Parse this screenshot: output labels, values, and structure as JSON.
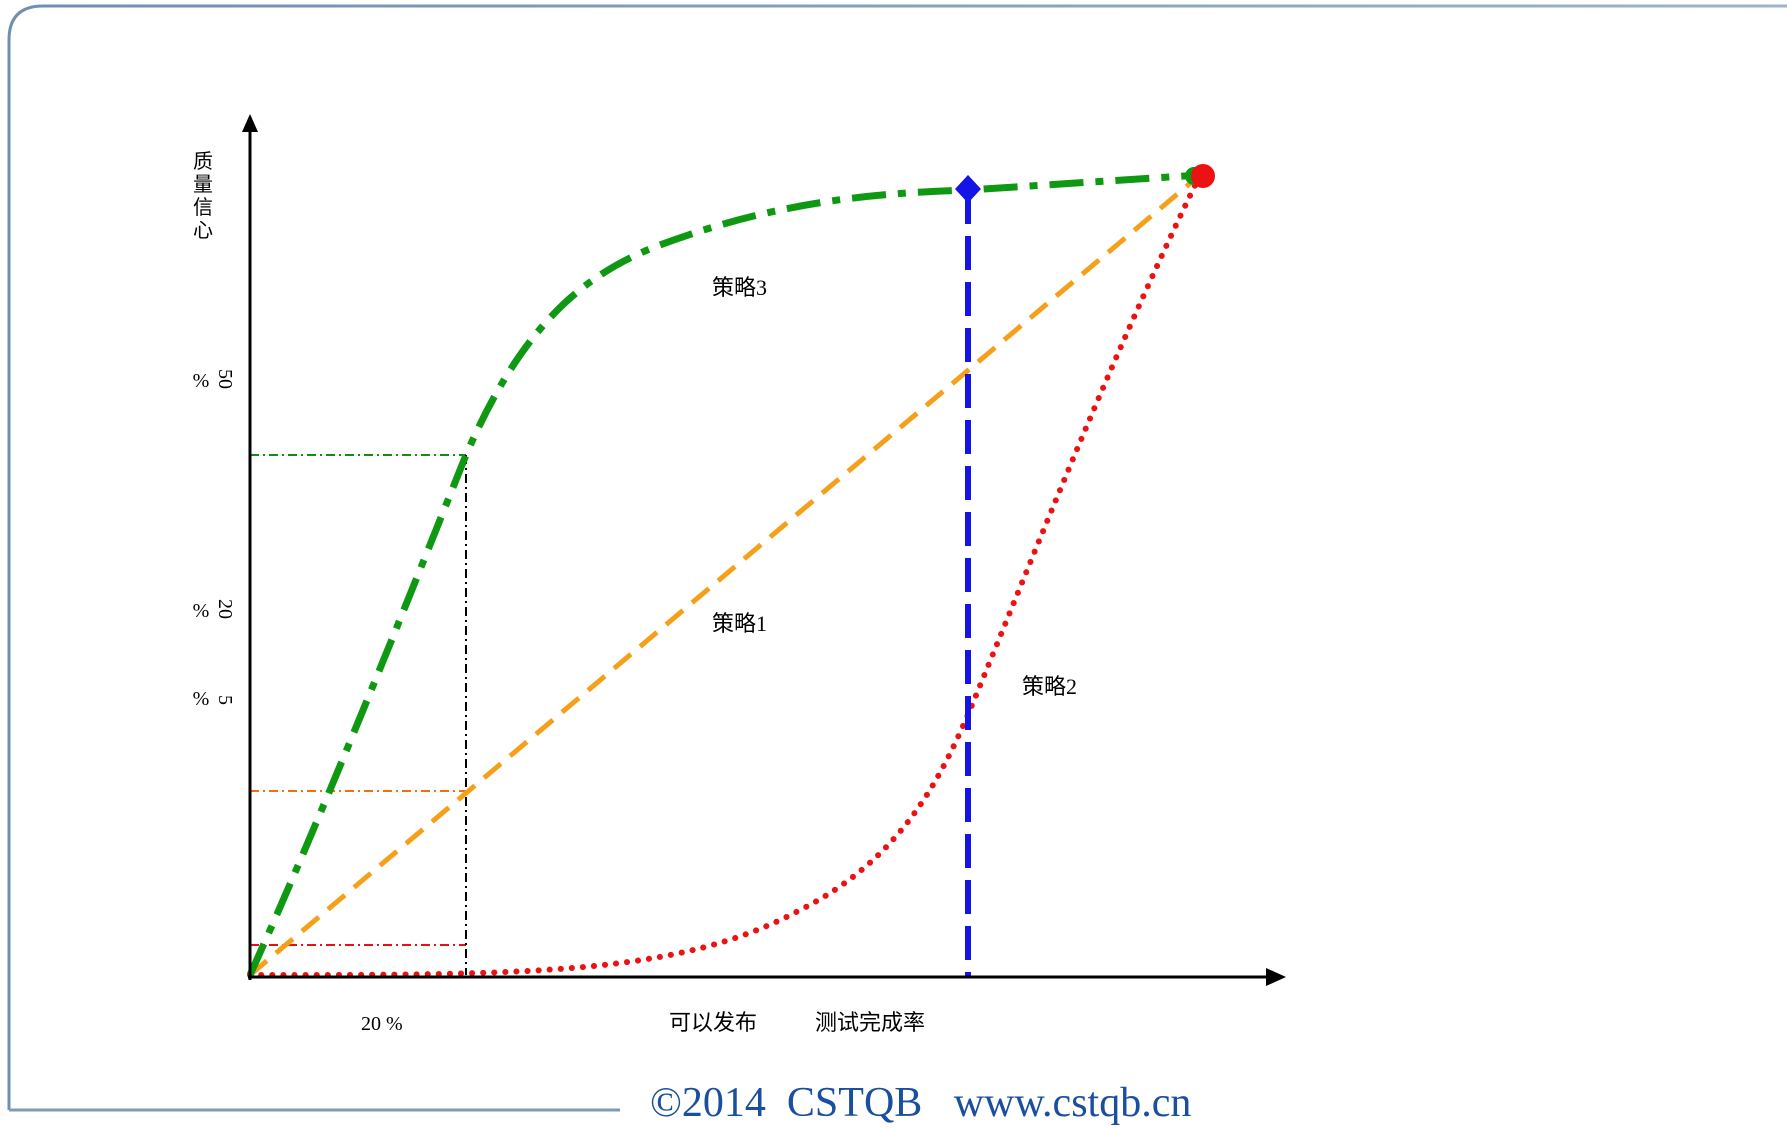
{
  "diagram": {
    "y_axis_label": "质量信心",
    "y_ticks": [
      {
        "value": "50",
        "unit": "%"
      },
      {
        "value": "20",
        "unit": "%"
      },
      {
        "value": "5",
        "unit": "%"
      }
    ],
    "x_tick": "20 %",
    "x_label_1": "可以发布",
    "x_label_2": "测试完成率",
    "strategies": [
      {
        "label": "策略1",
        "color": "#f5a01a",
        "style": "dashed"
      },
      {
        "label": "策略2",
        "color": "#ee1111",
        "style": "dotted"
      },
      {
        "label": "策略3",
        "color": "#0f9912",
        "style": "dash-dot"
      }
    ],
    "release_marker_color": "#1414e6"
  },
  "footer": {
    "text": "©2014  CSTQB   www.cstqb.cn"
  }
}
